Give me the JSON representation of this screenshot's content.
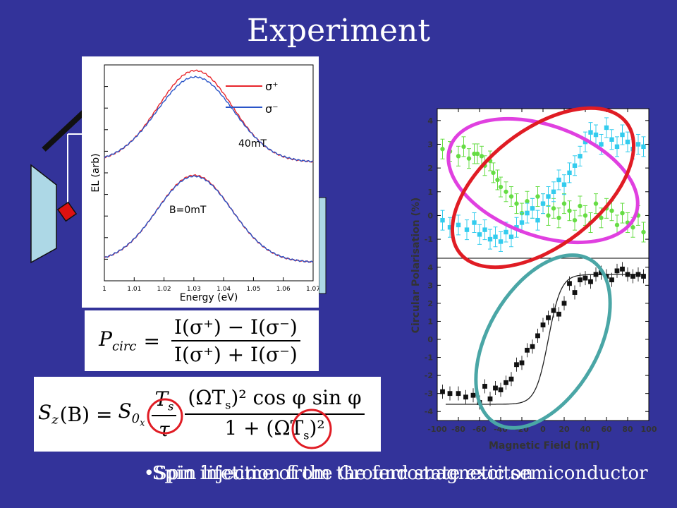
{
  "slide": {
    "title": "Experiment",
    "bullet_1": "Spin lifetime of the Ground state exciton",
    "bullet_2": "Spin injection from the ferromagnetic semiconductor"
  },
  "colors": {
    "background": "#33339a",
    "sigma_plus": "#e8262b",
    "sigma_minus": "#2a55c8",
    "green_series": "#66dd44",
    "cyan_series": "#33ccee",
    "magenta_ellipse": "#e040e0",
    "red_ellipse": "#e01c24",
    "teal_ellipse": "#4aa6a6"
  },
  "equations": {
    "pcirc": {
      "lhs": "P",
      "lhs_sub": "circ",
      "num": "I(σ⁺) − I(σ⁻)",
      "den": "I(σ⁺) + I(σ⁻)"
    },
    "sz": {
      "lhs": "S",
      "lhs_sub": "z",
      "arg": "(B) =",
      "s0": "S",
      "s0_sub": "0",
      "s0_subsub": "x",
      "f1_num": "T",
      "f1_num_sub": "s",
      "f1_den": "τ",
      "f2_num": "(ΩT",
      "f2_num_sub": "s",
      "f2_num_rest": ")² cos φ sin φ",
      "f2_den_pre": "1 + (",
      "f2_den_circ": "ΩT",
      "f2_den_circ_sub": "s",
      "f2_den_post": ")²"
    }
  },
  "chart_data": [
    {
      "type": "line",
      "xlabel": "Energy (eV)",
      "ylabel": "EL (arb)",
      "xlim": [
        1.0,
        1.07
      ],
      "x_ticks": [
        "1",
        "1.01",
        "1.02",
        "1.03",
        "1.04",
        "1.05",
        "1.06",
        "1.07"
      ],
      "legend": [
        {
          "name": "σ⁺",
          "color": "#e8262b"
        },
        {
          "name": "σ⁻",
          "color": "#2a55c8"
        }
      ],
      "annotations": [
        "40mT",
        "B=0mT"
      ],
      "series": [
        {
          "name": "σ⁺",
          "offset": 1,
          "center": 1.0305,
          "width": 0.0125,
          "peak": 1.0,
          "base": 0.08
        },
        {
          "name": "σ⁻",
          "offset": 1,
          "center": 1.0305,
          "width": 0.0128,
          "peak": 0.93,
          "base": 0.08
        },
        {
          "name": "σ⁺",
          "offset": 0,
          "center": 1.0302,
          "width": 0.0125,
          "peak": 0.95,
          "base": 0.08
        },
        {
          "name": "σ⁻",
          "offset": 0,
          "center": 1.0302,
          "width": 0.0126,
          "peak": 0.94,
          "base": 0.08
        }
      ]
    },
    {
      "type": "scatter",
      "ylabel": "Circular Polarisation (%)",
      "xlabel": "Magnetic Field (mT)",
      "xlim": [
        -100,
        100
      ],
      "x_ticks": [
        "-100",
        "-80",
        "-60",
        "-40",
        "-20",
        "0",
        "20",
        "40",
        "60",
        "80",
        "100"
      ],
      "top_panel": {
        "ylim": [
          -1.8,
          4.5
        ],
        "y_ticks": [
          "4",
          "3",
          "2",
          "1",
          "0",
          "-1"
        ],
        "series": [
          {
            "name": "",
            "color": "#66dd44",
            "x": [
              -95,
              -88,
              -80,
              -75,
              -70,
              -65,
              -62,
              -58,
              -55,
              -50,
              -47,
              -43,
              -40,
              -35,
              -30,
              -25,
              -20,
              -15,
              -10,
              -5,
              0,
              5,
              10,
              15,
              20,
              25,
              30,
              35,
              40,
              45,
              50,
              55,
              60,
              65,
              70,
              75,
              80,
              85,
              90,
              95
            ],
            "y": [
              2.8,
              2.7,
              2.5,
              2.9,
              2.4,
              2.6,
              2.6,
              2.5,
              2.1,
              2.3,
              1.8,
              1.5,
              1.2,
              1.0,
              0.8,
              0.5,
              0.1,
              0.6,
              0.3,
              0.8,
              0.5,
              0.0,
              0.3,
              -0.1,
              0.5,
              0.2,
              -0.2,
              0.4,
              0.0,
              -0.3,
              0.5,
              -0.1,
              0.3,
              0.2,
              -0.4,
              0.1,
              -0.3,
              -0.5,
              0.0,
              -0.7
            ]
          },
          {
            "name": "",
            "color": "#33ccee",
            "x": [
              -95,
              -88,
              -80,
              -72,
              -65,
              -60,
              -55,
              -50,
              -45,
              -40,
              -35,
              -30,
              -25,
              -20,
              -15,
              -10,
              -5,
              0,
              5,
              10,
              15,
              20,
              25,
              30,
              35,
              40,
              45,
              50,
              55,
              60,
              65,
              70,
              75,
              80,
              85,
              90,
              95
            ],
            "y": [
              -0.2,
              -0.5,
              -0.4,
              -0.6,
              -0.3,
              -0.8,
              -0.6,
              -1.0,
              -0.9,
              -1.1,
              -0.7,
              -0.9,
              -0.5,
              -0.3,
              0.1,
              0.3,
              -0.2,
              0.5,
              0.8,
              1.0,
              1.5,
              1.3,
              1.8,
              2.1,
              2.5,
              3.1,
              3.5,
              3.4,
              3.0,
              3.7,
              3.2,
              2.9,
              3.4,
              3.1,
              2.8,
              3.0,
              2.9
            ]
          }
        ]
      },
      "bottom_panel": {
        "ylim": [
          -4.5,
          4.5
        ],
        "y_ticks": [
          "4",
          "3",
          "2",
          "1",
          "0",
          "-1",
          "-2",
          "-3",
          "-4"
        ],
        "series": [
          {
            "name": "",
            "color": "#111111",
            "x": [
              -95,
              -88,
              -80,
              -73,
              -66,
              -60,
              -55,
              -50,
              -45,
              -40,
              -35,
              -30,
              -25,
              -20,
              -15,
              -10,
              -5,
              0,
              5,
              10,
              15,
              20,
              25,
              30,
              35,
              40,
              45,
              50,
              55,
              60,
              65,
              70,
              75,
              80,
              85,
              90,
              95
            ],
            "y": [
              -2.9,
              -3.0,
              -3.0,
              -3.2,
              -3.1,
              -3.5,
              -2.6,
              -3.3,
              -2.7,
              -2.8,
              -2.4,
              -2.2,
              -1.4,
              -1.3,
              -0.6,
              -0.4,
              0.2,
              0.8,
              1.2,
              1.6,
              1.4,
              2.0,
              3.1,
              2.6,
              3.3,
              3.4,
              3.2,
              3.6,
              3.7,
              3.5,
              3.3,
              3.8,
              3.9,
              3.6,
              3.5,
              3.6,
              3.5
            ]
          }
        ],
        "fit": {
          "name": "",
          "color": "#222222",
          "amplitude": 3.6,
          "center": 5,
          "width": 12
        }
      }
    }
  ]
}
